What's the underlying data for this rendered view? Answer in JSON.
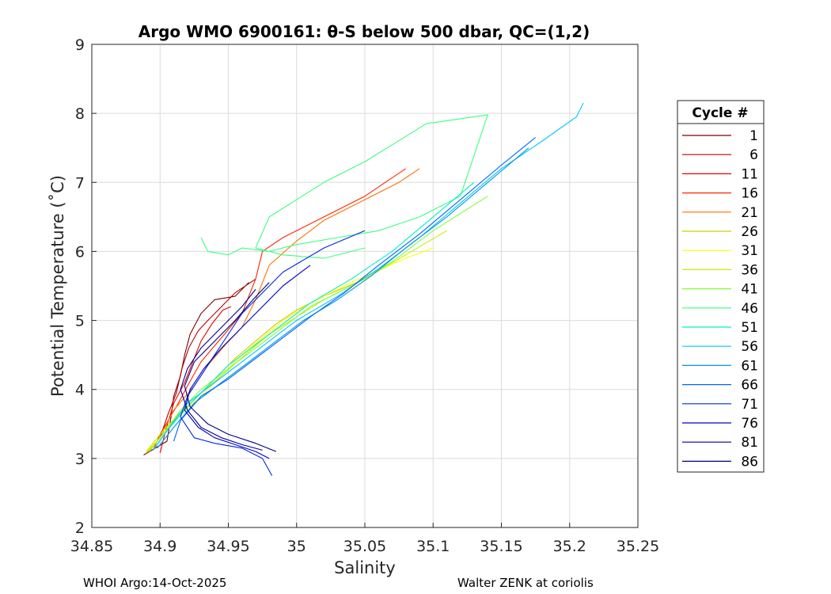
{
  "chart_data": {
    "type": "line",
    "title": "Argo WMO 6900161: θ-S below 500 dbar,  QC=(1,2)",
    "xlabel": "Salinity",
    "ylabel": "Potential Temperature (˚C)",
    "xlim": [
      34.85,
      35.25
    ],
    "ylim": [
      2,
      9
    ],
    "xticks": [
      34.85,
      34.9,
      34.95,
      35,
      35.05,
      35.1,
      35.15,
      35.2,
      35.25
    ],
    "xtick_labels": [
      "34.85",
      "34.9",
      "34.95",
      "35",
      "35.05",
      "35.1",
      "35.15",
      "35.2",
      "35.25"
    ],
    "yticks": [
      2,
      3,
      4,
      5,
      6,
      7,
      8,
      9
    ],
    "ytick_labels": [
      "2",
      "3",
      "4",
      "5",
      "6",
      "7",
      "8",
      "9"
    ],
    "grid": true,
    "legend": {
      "title": "Cycle #",
      "placement": "right-outside",
      "entries": [
        {
          "label": "1",
          "color": "#800000"
        },
        {
          "label": "6",
          "color": "#b40000"
        },
        {
          "label": "11",
          "color": "#e60000"
        },
        {
          "label": "16",
          "color": "#ff2400"
        },
        {
          "label": "21",
          "color": "#ff7000"
        },
        {
          "label": "26",
          "color": "#cccc00"
        },
        {
          "label": "31",
          "color": "#ffff00"
        },
        {
          "label": "36",
          "color": "#c8f000"
        },
        {
          "label": "41",
          "color": "#80ff3c"
        },
        {
          "label": "46",
          "color": "#3cff80"
        },
        {
          "label": "51",
          "color": "#00f0c8"
        },
        {
          "label": "56",
          "color": "#00c8ff"
        },
        {
          "label": "61",
          "color": "#0096e6"
        },
        {
          "label": "66",
          "color": "#0064ff"
        },
        {
          "label": "71",
          "color": "#0028e6"
        },
        {
          "label": "76",
          "color": "#0000c8"
        },
        {
          "label": "81",
          "color": "#000096"
        },
        {
          "label": "86",
          "color": "#000080"
        }
      ]
    },
    "series": [
      {
        "name": "1",
        "color": "#800000",
        "x": [
          34.888,
          34.905,
          34.908,
          34.91,
          34.915,
          34.918,
          34.922,
          34.93,
          34.94,
          34.955,
          34.965
        ],
        "y": [
          3.05,
          3.25,
          3.6,
          3.9,
          4.2,
          4.5,
          4.8,
          5.1,
          5.3,
          5.35,
          5.55
        ]
      },
      {
        "name": "6",
        "color": "#b40000",
        "x": [
          34.89,
          34.9,
          34.906,
          34.912,
          34.916,
          34.921,
          34.928,
          34.935,
          34.945,
          34.955,
          34.97
        ],
        "y": [
          3.1,
          3.3,
          3.65,
          3.95,
          4.3,
          4.6,
          4.85,
          5.0,
          5.2,
          5.4,
          5.6
        ]
      },
      {
        "name": "11",
        "color": "#e60000",
        "x": [
          34.9,
          34.904,
          34.91,
          34.918,
          34.924,
          34.93,
          34.938,
          34.946,
          34.952
        ],
        "y": [
          3.08,
          3.4,
          3.8,
          4.1,
          4.4,
          4.7,
          4.95,
          5.15,
          5.2
        ]
      },
      {
        "name": "16",
        "color": "#ff2400",
        "x": [
          34.895,
          34.9,
          34.912,
          34.92,
          34.93,
          34.945,
          34.96,
          34.97,
          34.975,
          34.99,
          35.02,
          35.05,
          35.08
        ],
        "y": [
          3.12,
          3.35,
          3.75,
          4.05,
          4.4,
          4.75,
          5.1,
          5.6,
          6.0,
          6.2,
          6.5,
          6.8,
          7.2
        ]
      },
      {
        "name": "21",
        "color": "#ff7000",
        "x": [
          34.892,
          34.9,
          34.91,
          34.925,
          34.935,
          34.948,
          34.96,
          34.97,
          34.98,
          35.0,
          35.02,
          35.05,
          35.075,
          35.09
        ],
        "y": [
          3.1,
          3.3,
          3.7,
          4.05,
          4.35,
          4.65,
          4.9,
          5.3,
          5.8,
          6.15,
          6.45,
          6.75,
          7.0,
          7.2
        ]
      },
      {
        "name": "26",
        "color": "#cccc00",
        "x": [
          34.89,
          34.898,
          34.91,
          34.925,
          34.94,
          34.955,
          34.97,
          34.985,
          35.0,
          35.02,
          35.05
        ],
        "y": [
          3.08,
          3.25,
          3.55,
          3.85,
          4.15,
          4.45,
          4.7,
          4.95,
          5.15,
          5.35,
          5.6
        ]
      },
      {
        "name": "31",
        "color": "#ffff00",
        "x": [
          34.89,
          34.9,
          34.913,
          34.93,
          34.945,
          34.96,
          34.975,
          34.99,
          35.01,
          35.04,
          35.08,
          35.1
        ],
        "y": [
          3.1,
          3.3,
          3.6,
          3.9,
          4.2,
          4.5,
          4.75,
          5.0,
          5.25,
          5.55,
          5.9,
          6.05
        ]
      },
      {
        "name": "36",
        "color": "#c8f000",
        "x": [
          34.89,
          34.9,
          34.914,
          34.93,
          34.948,
          34.965,
          34.98,
          35.0,
          35.02,
          35.05,
          35.08,
          35.11
        ],
        "y": [
          3.1,
          3.35,
          3.65,
          3.95,
          4.25,
          4.55,
          4.8,
          5.05,
          5.3,
          5.6,
          5.95,
          6.3
        ]
      },
      {
        "name": "41",
        "color": "#80ff3c",
        "x": [
          34.892,
          34.902,
          34.915,
          34.93,
          34.95,
          34.97,
          34.99,
          35.01,
          35.04,
          35.07,
          35.1,
          35.14
        ],
        "y": [
          3.1,
          3.35,
          3.7,
          4.0,
          4.3,
          4.6,
          4.9,
          5.2,
          5.5,
          5.85,
          6.3,
          6.8
        ]
      },
      {
        "name": "46",
        "color": "#3cff80",
        "x": [
          34.93,
          34.935,
          34.95,
          34.96,
          34.98,
          35.0,
          35.03,
          35.06,
          35.09,
          35.12,
          35.14,
          35.095,
          35.05,
          35.02,
          34.98,
          34.97,
          34.99,
          35.02,
          35.05
        ],
        "y": [
          6.2,
          6.0,
          5.95,
          6.05,
          6.0,
          6.1,
          6.2,
          6.3,
          6.5,
          6.8,
          7.98,
          7.85,
          7.3,
          7.0,
          6.5,
          6.05,
          5.95,
          5.9,
          6.05
        ]
      },
      {
        "name": "51",
        "color": "#00f0c8",
        "x": [
          34.895,
          34.905,
          34.92,
          34.935,
          34.95,
          34.97,
          34.99,
          35.01,
          35.04,
          35.07,
          35.1,
          35.13
        ],
        "y": [
          3.12,
          3.4,
          3.75,
          4.05,
          4.35,
          4.65,
          4.95,
          5.25,
          5.6,
          6.0,
          6.5,
          7.0
        ]
      },
      {
        "name": "56",
        "color": "#00c8ff",
        "x": [
          34.895,
          34.905,
          34.92,
          34.94,
          34.96,
          34.98,
          35.0,
          35.03,
          35.06,
          35.09,
          35.12,
          35.15,
          35.18,
          35.205,
          35.21
        ],
        "y": [
          3.12,
          3.4,
          3.8,
          4.1,
          4.4,
          4.7,
          5.0,
          5.35,
          5.75,
          6.2,
          6.7,
          7.2,
          7.6,
          7.95,
          8.15
        ]
      },
      {
        "name": "61",
        "color": "#0096e6",
        "x": [
          34.898,
          34.91,
          34.925,
          34.945,
          34.965,
          34.985,
          35.005,
          35.03,
          35.055,
          35.08,
          35.11,
          35.14,
          35.17
        ],
        "y": [
          3.15,
          3.45,
          3.8,
          4.1,
          4.4,
          4.7,
          5.0,
          5.3,
          5.65,
          6.05,
          6.5,
          7.0,
          7.5
        ]
      },
      {
        "name": "66",
        "color": "#0064ff",
        "x": [
          34.91,
          34.915,
          34.93,
          34.95,
          34.97,
          34.99,
          35.01,
          35.035,
          35.06,
          35.09,
          35.12,
          35.15,
          35.175
        ],
        "y": [
          3.25,
          3.55,
          3.9,
          4.15,
          4.45,
          4.75,
          5.05,
          5.4,
          5.8,
          6.25,
          6.75,
          7.25,
          7.65
        ]
      },
      {
        "name": "71",
        "color": "#0028e6",
        "x": [
          34.982,
          34.975,
          34.96,
          34.94,
          34.925,
          34.915,
          34.92,
          34.93,
          34.94,
          34.95,
          34.96,
          34.975,
          34.99,
          35.02,
          35.05
        ],
        "y": [
          2.75,
          3.0,
          3.15,
          3.22,
          3.3,
          3.6,
          3.9,
          4.2,
          4.5,
          4.8,
          5.1,
          5.4,
          5.7,
          6.05,
          6.3
        ]
      },
      {
        "name": "76",
        "color": "#0000c8",
        "x": [
          34.98,
          34.97,
          34.955,
          34.94,
          34.928,
          34.918,
          34.922,
          34.932,
          34.945,
          34.96,
          34.975,
          34.99,
          35.01
        ],
        "y": [
          3.0,
          3.1,
          3.2,
          3.3,
          3.45,
          3.7,
          4.0,
          4.3,
          4.6,
          4.9,
          5.2,
          5.5,
          5.8
        ]
      },
      {
        "name": "81",
        "color": "#000096",
        "x": [
          34.975,
          34.96,
          34.945,
          34.93,
          34.92,
          34.915,
          34.92,
          34.93,
          34.945,
          34.96,
          34.97
        ],
        "y": [
          3.12,
          3.2,
          3.3,
          3.45,
          3.7,
          4.0,
          4.3,
          4.6,
          4.9,
          5.2,
          5.45
        ]
      },
      {
        "name": "86",
        "color": "#000080",
        "x": [
          34.985,
          34.97,
          34.95,
          34.935,
          34.922,
          34.918,
          34.925,
          34.94,
          34.955,
          34.968,
          34.98
        ],
        "y": [
          3.1,
          3.22,
          3.35,
          3.5,
          3.75,
          4.05,
          4.4,
          4.7,
          5.0,
          5.3,
          5.55
        ]
      }
    ]
  },
  "footer": {
    "left": "WHOI Argo:14-Oct-2025",
    "right": "Walter ZENK at coriolis"
  }
}
